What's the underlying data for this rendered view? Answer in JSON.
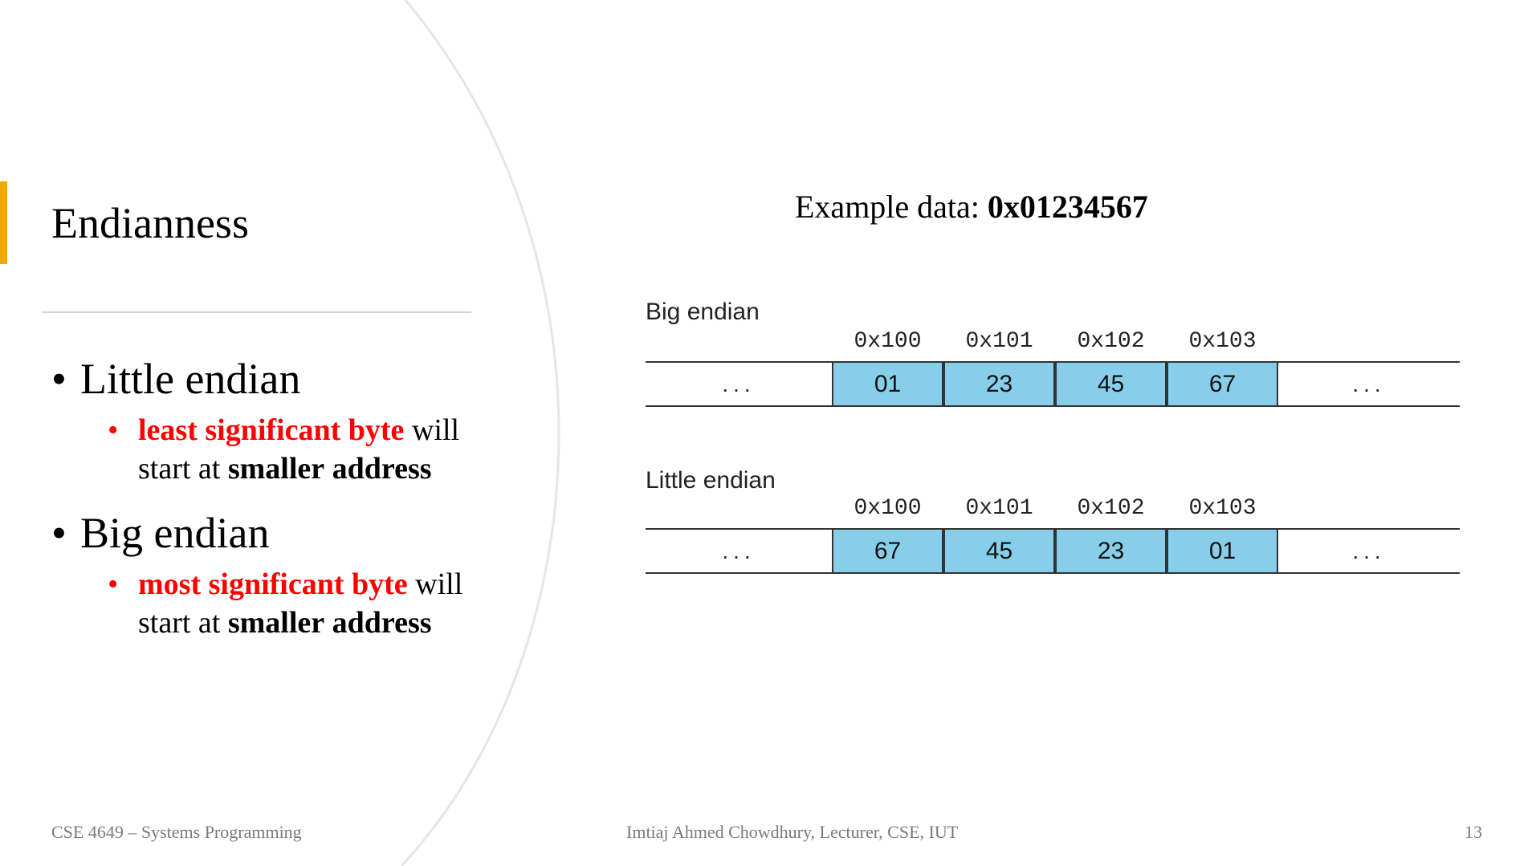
{
  "slide": {
    "title": "Endianness",
    "bullets": [
      {
        "label": "Little endian",
        "sub_red": "least significant byte",
        "sub_plain": " will start at ",
        "sub_bold1": "smaller",
        "sub_bold2": "address"
      },
      {
        "label": "Big endian",
        "sub_red": "most significant byte",
        "sub_plain": " will start at ",
        "sub_bold1": "smaller",
        "sub_bold2": "address"
      }
    ],
    "example_prefix": "Example data: ",
    "example_value": "0x01234567"
  },
  "diagram": {
    "big": {
      "label": "Big endian",
      "addresses": [
        "0x100",
        "0x101",
        "0x102",
        "0x103"
      ],
      "bytes": [
        "01",
        "23",
        "45",
        "67"
      ],
      "ellipsis": "..."
    },
    "little": {
      "label": "Little endian",
      "addresses": [
        "0x100",
        "0x101",
        "0x102",
        "0x103"
      ],
      "bytes": [
        "67",
        "45",
        "23",
        "01"
      ],
      "ellipsis": "..."
    },
    "cell_color": "#87ceeb"
  },
  "footer": {
    "course": "CSE 4649 – Systems Programming",
    "author": "Imtiaj Ahmed Chowdhury, Lecturer, CSE, IUT",
    "page": "13"
  },
  "colors": {
    "accent": "#f2a900",
    "emphasis": "#ff0000"
  }
}
